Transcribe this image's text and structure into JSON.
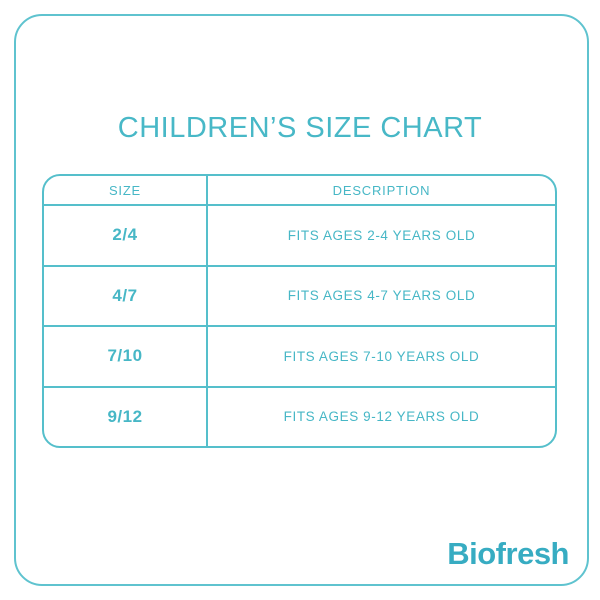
{
  "title": "CHILDREN’S SIZE CHART",
  "table": {
    "headers": {
      "size": "SIZE",
      "description": "DESCRIPTION"
    },
    "rows": [
      {
        "size": "2/4",
        "description": "FITS AGES 2-4 YEARS OLD"
      },
      {
        "size": "4/7",
        "description": "FITS AGES 4-7 YEARS OLD"
      },
      {
        "size": "7/10",
        "description": "FITS AGES 7-10 YEARS OLD"
      },
      {
        "size": "9/12",
        "description": "FITS AGES 9-12 YEARS OLD"
      }
    ]
  },
  "brand": {
    "logo_text": "Biofresh"
  },
  "colors": {
    "accent_text": "#47b7c6",
    "border_line": "#55bfcb",
    "logo": "#37acc2",
    "background": "#ffffff"
  }
}
